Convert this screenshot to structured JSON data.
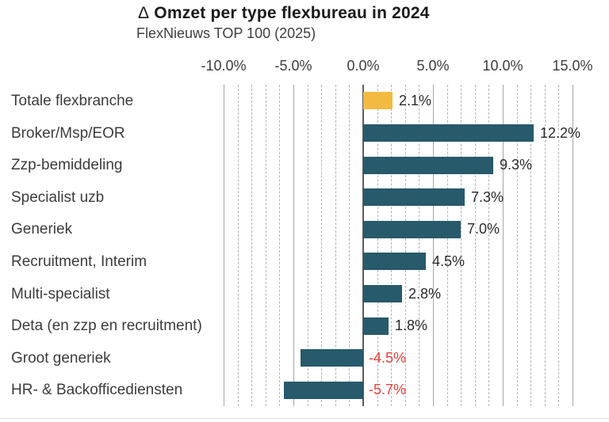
{
  "header": {
    "title_delta": "Δ",
    "title_rest": "Omzet per type flexbureau in 2024",
    "subtitle": "FlexNieuws TOP 100 (2025)"
  },
  "chart_data": {
    "type": "bar",
    "orientation": "horizontal",
    "title": "Δ Omzet per type flexbureau in 2024",
    "subtitle": "FlexNieuws TOP 100 (2025)",
    "categories": [
      "Totale flexbranche",
      "Broker/Msp/EOR",
      "Zzp-bemiddeling",
      "Specialist uzb",
      "Generiek",
      "Recruitment, Interim",
      "Multi-specialist",
      "Deta (en zzp en recruitment)",
      "Groot generiek",
      "HR- & Backofficediensten"
    ],
    "values": [
      2.1,
      12.2,
      9.3,
      7.3,
      7.0,
      4.5,
      2.8,
      1.8,
      -4.5,
      -5.7
    ],
    "value_labels": [
      "2.1%",
      "12.2%",
      "9.3%",
      "7.3%",
      "7.0%",
      "4.5%",
      "2.8%",
      "1.8%",
      "-4.5%",
      "-5.7%"
    ],
    "bar_colors": [
      "#f3ba42",
      "#275a6b",
      "#275a6b",
      "#275a6b",
      "#275a6b",
      "#275a6b",
      "#275a6b",
      "#275a6b",
      "#275a6b",
      "#275a6b"
    ],
    "colors": {
      "highlight": "#f3ba42",
      "bar": "#275a6b",
      "positive_text": "#2b2b2b",
      "negative_text": "#e8413a"
    },
    "axis": {
      "min": -10,
      "max": 15,
      "major_step": 5,
      "minor_step": 1,
      "tick_values": [
        -10,
        -5,
        0,
        5,
        10,
        15
      ],
      "tick_labels": [
        "-10.0%",
        "-5.0%",
        "0.0%",
        "5.0%",
        "10.0%",
        "15.0%"
      ],
      "grid": "minor-dashed-major-solid",
      "tick_label_position": "top"
    },
    "legend": null
  }
}
